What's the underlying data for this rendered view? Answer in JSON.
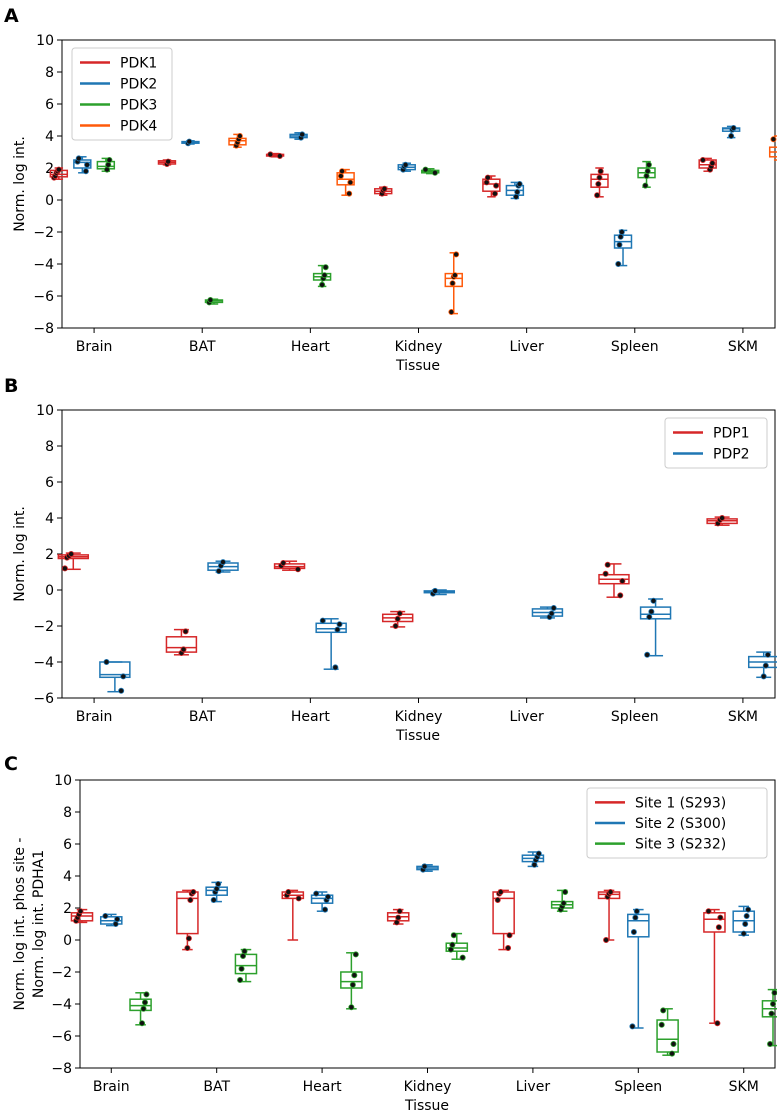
{
  "chart_data": [
    {
      "panel": "A",
      "type": "box",
      "xlabel": "Tissue",
      "ylabel": "Norm. log int.",
      "ylim": [
        -8,
        10
      ],
      "yticks": [
        -8,
        -6,
        -4,
        -2,
        0,
        2,
        4,
        6,
        8,
        10
      ],
      "categories": [
        "Brain",
        "BAT",
        "Heart",
        "Kidney",
        "Liver",
        "Spleen",
        "SKM"
      ],
      "legend": {
        "placement": "top-left"
      },
      "series": [
        {
          "name": "PDK1",
          "color": "#d62728",
          "boxes": [
            {
              "cat": 0,
              "min": 1.3,
              "q1": 1.45,
              "med": 1.6,
              "q3": 1.85,
              "max": 2.0,
              "points": [
                1.4,
                1.5,
                1.7,
                1.8,
                1.9
              ]
            },
            {
              "cat": 1,
              "min": 2.2,
              "q1": 2.25,
              "med": 2.35,
              "q3": 2.45,
              "max": 2.5,
              "points": [
                2.25,
                2.4
              ]
            },
            {
              "cat": 2,
              "min": 2.7,
              "q1": 2.75,
              "med": 2.8,
              "q3": 2.85,
              "max": 2.9,
              "points": [
                2.75,
                2.85
              ]
            },
            {
              "cat": 3,
              "min": 0.3,
              "q1": 0.4,
              "med": 0.55,
              "q3": 0.7,
              "max": 0.8,
              "points": [
                0.4,
                0.6,
                0.7
              ]
            },
            {
              "cat": 4,
              "min": 0.2,
              "q1": 0.55,
              "med": 1.0,
              "q3": 1.3,
              "max": 1.5,
              "points": [
                0.4,
                0.9,
                1.1,
                1.4
              ]
            },
            {
              "cat": 5,
              "min": 0.2,
              "q1": 0.8,
              "med": 1.3,
              "q3": 1.6,
              "max": 2.0,
              "points": [
                0.3,
                1.0,
                1.4,
                1.8
              ]
            },
            {
              "cat": 6,
              "min": 1.8,
              "q1": 2.0,
              "med": 2.2,
              "q3": 2.5,
              "max": 2.6,
              "points": [
                1.9,
                2.1,
                2.3,
                2.5
              ]
            }
          ]
        },
        {
          "name": "PDK2",
          "color": "#1f77b4",
          "boxes": [
            {
              "cat": 0,
              "min": 1.7,
              "q1": 2.0,
              "med": 2.35,
              "q3": 2.5,
              "max": 2.7,
              "points": [
                1.8,
                2.2,
                2.4,
                2.6
              ]
            },
            {
              "cat": 1,
              "min": 3.5,
              "q1": 3.55,
              "med": 3.6,
              "q3": 3.65,
              "max": 3.7,
              "points": [
                3.55,
                3.65
              ]
            },
            {
              "cat": 2,
              "min": 3.8,
              "q1": 3.9,
              "med": 4.0,
              "q3": 4.1,
              "max": 4.2,
              "points": [
                3.9,
                4.1
              ]
            },
            {
              "cat": 3,
              "min": 1.8,
              "q1": 1.9,
              "med": 2.05,
              "q3": 2.2,
              "max": 2.3,
              "points": [
                1.9,
                2.1,
                2.2
              ]
            },
            {
              "cat": 4,
              "min": 0.1,
              "q1": 0.3,
              "med": 0.6,
              "q3": 0.9,
              "max": 1.1,
              "points": [
                0.2,
                0.5,
                0.9,
                1.0
              ]
            },
            {
              "cat": 5,
              "min": -4.1,
              "q1": -3.0,
              "med": -2.6,
              "q3": -2.2,
              "max": -1.9,
              "points": [
                -4.0,
                -2.8,
                -2.3,
                -2.0
              ]
            },
            {
              "cat": 6,
              "min": 3.9,
              "q1": 4.3,
              "med": 4.45,
              "q3": 4.5,
              "max": 4.6,
              "points": [
                4.0,
                4.4,
                4.5
              ]
            }
          ]
        },
        {
          "name": "PDK3",
          "color": "#2ca02c",
          "boxes": [
            {
              "cat": 0,
              "min": 1.8,
              "q1": 1.95,
              "med": 2.1,
              "q3": 2.4,
              "max": 2.6,
              "points": [
                1.9,
                2.2,
                2.5
              ]
            },
            {
              "cat": 1,
              "min": -6.5,
              "q1": -6.4,
              "med": -6.3,
              "q3": -6.25,
              "max": -6.2,
              "points": [
                -6.4,
                -6.25
              ]
            },
            {
              "cat": 2,
              "min": -5.4,
              "q1": -5.0,
              "med": -4.8,
              "q3": -4.6,
              "max": -4.1,
              "points": [
                -5.3,
                -4.9,
                -4.7,
                -4.2
              ]
            },
            {
              "cat": 3,
              "min": 1.65,
              "q1": 1.7,
              "med": 1.8,
              "q3": 1.85,
              "max": 1.95,
              "points": [
                1.7,
                1.9
              ]
            },
            {
              "cat": 5,
              "min": 0.8,
              "q1": 1.4,
              "med": 1.7,
              "q3": 2.0,
              "max": 2.4,
              "points": [
                0.9,
                1.5,
                1.8,
                2.2
              ]
            }
          ]
        },
        {
          "name": "PDK4",
          "color": "#ff5a0a",
          "boxes": [
            {
              "cat": 1,
              "min": 3.3,
              "q1": 3.45,
              "med": 3.7,
              "q3": 3.85,
              "max": 4.1,
              "points": [
                3.4,
                3.6,
                3.8,
                4.0
              ]
            },
            {
              "cat": 2,
              "min": 0.3,
              "q1": 0.95,
              "med": 1.3,
              "q3": 1.7,
              "max": 1.9,
              "points": [
                0.4,
                1.1,
                1.5,
                1.8
              ]
            },
            {
              "cat": 3,
              "min": -7.1,
              "q1": -5.4,
              "med": -4.9,
              "q3": -4.6,
              "max": -3.3,
              "points": [
                -7.0,
                -5.2,
                -4.8,
                -4.7,
                -3.4
              ]
            },
            {
              "cat": 6,
              "min": 2.5,
              "q1": 2.7,
              "med": 3.0,
              "q3": 3.3,
              "max": 4.0,
              "points": [
                2.6,
                2.9,
                3.1,
                3.8
              ]
            }
          ]
        }
      ]
    },
    {
      "panel": "B",
      "type": "box",
      "xlabel": "Tissue",
      "ylabel": "Norm. log int.",
      "ylim": [
        -6,
        10
      ],
      "yticks": [
        -6,
        -4,
        -2,
        0,
        2,
        4,
        6,
        8,
        10
      ],
      "categories": [
        "Brain",
        "BAT",
        "Heart",
        "Kidney",
        "Liver",
        "Spleen",
        "SKM"
      ],
      "legend": {
        "placement": "top-right"
      },
      "series": [
        {
          "name": "PDP1",
          "color": "#d62728",
          "boxes": [
            {
              "cat": 0,
              "min": 1.15,
              "q1": 1.75,
              "med": 1.85,
              "q3": 1.95,
              "max": 2.05,
              "points": [
                1.2,
                1.8,
                1.9,
                2.0
              ]
            },
            {
              "cat": 1,
              "min": -3.6,
              "q1": -3.45,
              "med": -3.2,
              "q3": -2.6,
              "max": -2.2,
              "points": [
                -3.5,
                -3.3,
                -2.3
              ]
            },
            {
              "cat": 2,
              "min": 1.1,
              "q1": 1.2,
              "med": 1.3,
              "q3": 1.45,
              "max": 1.6,
              "points": [
                1.15,
                1.35,
                1.5
              ]
            },
            {
              "cat": 3,
              "min": -2.05,
              "q1": -1.75,
              "med": -1.55,
              "q3": -1.35,
              "max": -1.2,
              "points": [
                -2.0,
                -1.6,
                -1.3
              ]
            },
            {
              "cat": 5,
              "min": -0.4,
              "q1": 0.35,
              "med": 0.6,
              "q3": 0.85,
              "max": 1.45,
              "points": [
                -0.3,
                0.5,
                0.9,
                1.4
              ]
            },
            {
              "cat": 6,
              "min": 3.6,
              "q1": 3.7,
              "med": 3.85,
              "q3": 3.95,
              "max": 4.05,
              "points": [
                3.7,
                3.9,
                4.0
              ]
            }
          ]
        },
        {
          "name": "PDP2",
          "color": "#1f77b4",
          "boxes": [
            {
              "cat": 0,
              "min": -5.65,
              "q1": -4.85,
              "med": -4.7,
              "q3": -4.0,
              "max": -4.0,
              "points": [
                -5.6,
                -4.8,
                -4.0
              ]
            },
            {
              "cat": 1,
              "min": 1.0,
              "q1": 1.1,
              "med": 1.3,
              "q3": 1.5,
              "max": 1.6,
              "points": [
                1.05,
                1.35,
                1.55
              ]
            },
            {
              "cat": 2,
              "min": -4.4,
              "q1": -2.35,
              "med": -2.15,
              "q3": -1.85,
              "max": -1.6,
              "points": [
                -4.3,
                -2.2,
                -1.9,
                -1.7
              ]
            },
            {
              "cat": 3,
              "min": -0.25,
              "q1": -0.15,
              "med": -0.1,
              "q3": -0.05,
              "max": 0.0,
              "points": [
                -0.2,
                -0.05
              ]
            },
            {
              "cat": 4,
              "min": -1.55,
              "q1": -1.45,
              "med": -1.25,
              "q3": -1.05,
              "max": -0.95,
              "points": [
                -1.5,
                -1.3,
                -1.0
              ]
            },
            {
              "cat": 5,
              "min": -3.65,
              "q1": -1.6,
              "med": -1.35,
              "q3": -0.95,
              "max": -0.5,
              "points": [
                -3.6,
                -1.5,
                -1.2,
                -0.6
              ]
            },
            {
              "cat": 6,
              "min": -4.85,
              "q1": -4.3,
              "med": -4.0,
              "q3": -3.7,
              "max": -3.45,
              "points": [
                -4.8,
                -4.2,
                -3.6
              ]
            }
          ]
        }
      ]
    },
    {
      "panel": "C",
      "type": "box",
      "xlabel": "Tissue",
      "ylabel": "Norm. log int. phos site -",
      "ylabel2": "Norm. log int. PDHA1",
      "ylim": [
        -8,
        10
      ],
      "yticks": [
        -8,
        -6,
        -4,
        -2,
        0,
        2,
        4,
        6,
        8,
        10
      ],
      "categories": [
        "Brain",
        "BAT",
        "Heart",
        "Kidney",
        "Liver",
        "Spleen",
        "SKM"
      ],
      "legend": {
        "placement": "top-right"
      },
      "series": [
        {
          "name": "Site 1 (S293)",
          "color": "#d62728",
          "boxes": [
            {
              "cat": 0,
              "min": 1.1,
              "q1": 1.2,
              "med": 1.5,
              "q3": 1.7,
              "max": 1.9,
              "points": [
                1.2,
                1.4,
                1.6,
                1.8
              ]
            },
            {
              "cat": 1,
              "min": -0.6,
              "q1": 0.4,
              "med": 2.6,
              "q3": 3.0,
              "max": 3.1,
              "points": [
                -0.5,
                0.1,
                2.5,
                2.9,
                3.0
              ]
            },
            {
              "cat": 2,
              "min": 0.0,
              "q1": 2.6,
              "med": 2.8,
              "q3": 3.0,
              "max": 3.1,
              "points": [
                2.6,
                2.8,
                3.0
              ]
            },
            {
              "cat": 3,
              "min": 1.0,
              "q1": 1.2,
              "med": 1.45,
              "q3": 1.7,
              "max": 1.9,
              "points": [
                1.1,
                1.4,
                1.8
              ]
            },
            {
              "cat": 4,
              "min": -0.6,
              "q1": 0.4,
              "med": 2.6,
              "q3": 3.0,
              "max": 3.1,
              "points": [
                -0.5,
                0.3,
                2.5,
                2.9,
                3.0
              ]
            },
            {
              "cat": 5,
              "min": 0.0,
              "q1": 2.6,
              "med": 2.85,
              "q3": 3.0,
              "max": 3.1,
              "points": [
                0.0,
                2.7,
                2.9,
                3.0
              ]
            },
            {
              "cat": 6,
              "min": -5.2,
              "q1": 0.5,
              "med": 1.3,
              "q3": 1.7,
              "max": 1.9,
              "points": [
                -5.2,
                0.8,
                1.4,
                1.8
              ]
            }
          ]
        },
        {
          "name": "Site 2 (S300)",
          "color": "#1f77b4",
          "boxes": [
            {
              "cat": 0,
              "min": 0.9,
              "q1": 1.0,
              "med": 1.2,
              "q3": 1.45,
              "max": 1.6,
              "points": [
                1.0,
                1.3,
                1.5
              ]
            },
            {
              "cat": 1,
              "min": 2.4,
              "q1": 2.8,
              "med": 3.1,
              "q3": 3.3,
              "max": 3.6,
              "points": [
                2.5,
                3.0,
                3.2,
                3.5
              ]
            },
            {
              "cat": 2,
              "min": 1.8,
              "q1": 2.3,
              "med": 2.6,
              "q3": 2.8,
              "max": 3.0,
              "points": [
                1.9,
                2.5,
                2.7,
                2.9
              ]
            },
            {
              "cat": 3,
              "min": 4.3,
              "q1": 4.4,
              "med": 4.5,
              "q3": 4.6,
              "max": 4.7,
              "points": [
                4.4,
                4.6
              ]
            },
            {
              "cat": 4,
              "min": 4.6,
              "q1": 4.9,
              "med": 5.1,
              "q3": 5.3,
              "max": 5.5,
              "points": [
                4.7,
                5.0,
                5.2,
                5.4
              ]
            },
            {
              "cat": 5,
              "min": -5.5,
              "q1": 0.2,
              "med": 1.2,
              "q3": 1.6,
              "max": 1.9,
              "points": [
                -5.4,
                0.5,
                1.4,
                1.8
              ]
            },
            {
              "cat": 6,
              "min": 0.3,
              "q1": 0.5,
              "med": 1.2,
              "q3": 1.8,
              "max": 2.1,
              "points": [
                0.4,
                1.0,
                1.5,
                1.9
              ]
            }
          ]
        },
        {
          "name": "Site 3 (S232)",
          "color": "#2ca02c",
          "boxes": [
            {
              "cat": 0,
              "min": -5.3,
              "q1": -4.4,
              "med": -4.1,
              "q3": -3.7,
              "max": -3.3,
              "points": [
                -5.2,
                -4.3,
                -3.9,
                -3.4
              ]
            },
            {
              "cat": 1,
              "min": -2.6,
              "q1": -2.1,
              "med": -1.6,
              "q3": -0.9,
              "max": -0.6,
              "points": [
                -2.5,
                -1.8,
                -1.0,
                -0.7
              ]
            },
            {
              "cat": 2,
              "min": -4.3,
              "q1": -3.0,
              "med": -2.6,
              "q3": -2.0,
              "max": -0.8,
              "points": [
                -4.2,
                -2.8,
                -2.2,
                -0.9
              ]
            },
            {
              "cat": 3,
              "min": -1.2,
              "q1": -0.7,
              "med": -0.5,
              "q3": -0.2,
              "max": 0.4,
              "points": [
                -1.1,
                -0.6,
                -0.3,
                0.3
              ]
            },
            {
              "cat": 4,
              "min": 1.8,
              "q1": 2.0,
              "med": 2.2,
              "q3": 2.4,
              "max": 3.1,
              "points": [
                1.9,
                2.1,
                2.3,
                3.0
              ]
            },
            {
              "cat": 5,
              "min": -7.2,
              "q1": -7.0,
              "med": -6.2,
              "q3": -5.0,
              "max": -4.3,
              "points": [
                -7.1,
                -6.5,
                -5.3,
                -4.4
              ]
            },
            {
              "cat": 6,
              "min": -6.6,
              "q1": -4.8,
              "med": -4.3,
              "q3": -3.8,
              "max": -3.1,
              "points": [
                -6.5,
                -4.6,
                -4.0,
                -3.3
              ]
            }
          ]
        }
      ]
    }
  ]
}
